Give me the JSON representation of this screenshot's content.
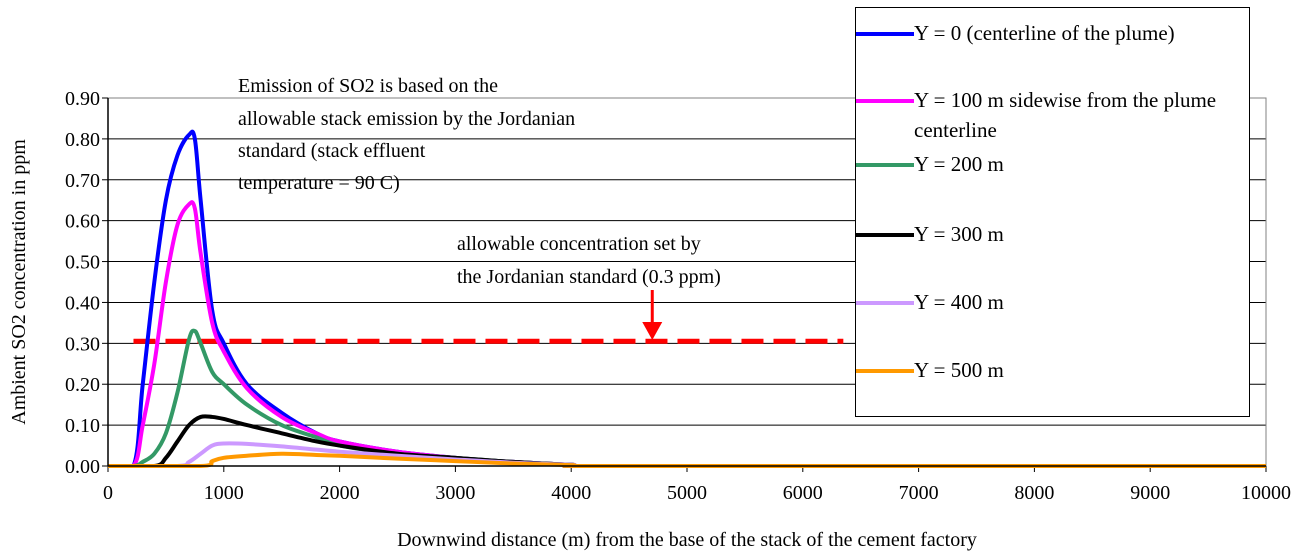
{
  "chart_data": {
    "type": "line",
    "title": "",
    "xlabel": "Downwind distance (m) from the base of the stack of the cement factory",
    "ylabel": "Ambient  SO2 concentration in ppm",
    "xlim": [
      0,
      10000
    ],
    "ylim": [
      0,
      0.9
    ],
    "x_ticks": [
      "0",
      "1000",
      "2000",
      "3000",
      "4000",
      "5000",
      "6000",
      "7000",
      "8000",
      "9000",
      "10000"
    ],
    "y_ticks": [
      "0.00",
      "0.10",
      "0.20",
      "0.30",
      "0.40",
      "0.50",
      "0.60",
      "0.70",
      "0.80",
      "0.90"
    ],
    "grid": "horizontal",
    "legend_position": "right",
    "series": [
      {
        "name": "Y = 0 (centerline of the plume)",
        "color": "#0000ff",
        "points": [
          [
            0,
            0
          ],
          [
            220,
            0
          ],
          [
            300,
            0.2
          ],
          [
            400,
            0.45
          ],
          [
            500,
            0.65
          ],
          [
            600,
            0.76
          ],
          [
            700,
            0.81
          ],
          [
            750,
            0.8
          ],
          [
            800,
            0.65
          ],
          [
            900,
            0.38
          ],
          [
            1000,
            0.3
          ],
          [
            1200,
            0.2
          ],
          [
            1500,
            0.13
          ],
          [
            1800,
            0.08
          ],
          [
            2000,
            0.06
          ],
          [
            2500,
            0.035
          ],
          [
            3000,
            0.02
          ],
          [
            3500,
            0.01
          ],
          [
            4000,
            0.003
          ],
          [
            4500,
            0
          ],
          [
            10000,
            0
          ]
        ]
      },
      {
        "name": "Y = 100 m sidewise from the plume centerline",
        "color": "#ff00ff",
        "points": [
          [
            0,
            0
          ],
          [
            220,
            0
          ],
          [
            300,
            0.1
          ],
          [
            400,
            0.25
          ],
          [
            500,
            0.45
          ],
          [
            600,
            0.59
          ],
          [
            700,
            0.64
          ],
          [
            750,
            0.63
          ],
          [
            800,
            0.52
          ],
          [
            900,
            0.35
          ],
          [
            1000,
            0.28
          ],
          [
            1200,
            0.19
          ],
          [
            1500,
            0.12
          ],
          [
            1800,
            0.08
          ],
          [
            2000,
            0.06
          ],
          [
            2500,
            0.035
          ],
          [
            3000,
            0.02
          ],
          [
            3500,
            0.01
          ],
          [
            4000,
            0.003
          ],
          [
            4500,
            0
          ],
          [
            10000,
            0
          ]
        ]
      },
      {
        "name": "Y = 200 m",
        "color": "#339966",
        "points": [
          [
            0,
            0
          ],
          [
            220,
            0
          ],
          [
            300,
            0.01
          ],
          [
            400,
            0.03
          ],
          [
            500,
            0.08
          ],
          [
            600,
            0.18
          ],
          [
            700,
            0.31
          ],
          [
            750,
            0.33
          ],
          [
            800,
            0.3
          ],
          [
            900,
            0.23
          ],
          [
            1000,
            0.2
          ],
          [
            1200,
            0.15
          ],
          [
            1500,
            0.1
          ],
          [
            1800,
            0.07
          ],
          [
            2000,
            0.05
          ],
          [
            2500,
            0.03
          ],
          [
            3000,
            0.02
          ],
          [
            3500,
            0.01
          ],
          [
            4000,
            0.003
          ],
          [
            4500,
            0
          ],
          [
            10000,
            0
          ]
        ]
      },
      {
        "name": "Y = 300 m",
        "color": "#000000",
        "points": [
          [
            0,
            0
          ],
          [
            400,
            0
          ],
          [
            500,
            0.02
          ],
          [
            600,
            0.06
          ],
          [
            700,
            0.1
          ],
          [
            800,
            0.12
          ],
          [
            900,
            0.12
          ],
          [
            1000,
            0.115
          ],
          [
            1200,
            0.1
          ],
          [
            1500,
            0.08
          ],
          [
            1800,
            0.06
          ],
          [
            2000,
            0.05
          ],
          [
            2500,
            0.03
          ],
          [
            3000,
            0.02
          ],
          [
            3500,
            0.01
          ],
          [
            4000,
            0.003
          ],
          [
            4500,
            0
          ],
          [
            10000,
            0
          ]
        ]
      },
      {
        "name": "Y = 400 m",
        "color": "#cc99ff",
        "points": [
          [
            0,
            0
          ],
          [
            600,
            0
          ],
          [
            700,
            0.01
          ],
          [
            800,
            0.03
          ],
          [
            900,
            0.05
          ],
          [
            1000,
            0.055
          ],
          [
            1200,
            0.054
          ],
          [
            1500,
            0.048
          ],
          [
            1800,
            0.04
          ],
          [
            2000,
            0.035
          ],
          [
            2500,
            0.025
          ],
          [
            3000,
            0.016
          ],
          [
            3500,
            0.008
          ],
          [
            4000,
            0.003
          ],
          [
            4500,
            0
          ],
          [
            10000,
            0
          ]
        ]
      },
      {
        "name": "Y = 500 m",
        "color": "#ff9900",
        "points": [
          [
            0,
            0
          ],
          [
            800,
            0
          ],
          [
            900,
            0.012
          ],
          [
            1000,
            0.02
          ],
          [
            1200,
            0.025
          ],
          [
            1500,
            0.03
          ],
          [
            1800,
            0.027
          ],
          [
            2000,
            0.025
          ],
          [
            2500,
            0.018
          ],
          [
            3000,
            0.012
          ],
          [
            3500,
            0.006
          ],
          [
            4000,
            0.002
          ],
          [
            4500,
            0
          ],
          [
            10000,
            0
          ]
        ]
      }
    ],
    "reference_line": {
      "y": 0.305,
      "color": "#ff0000",
      "x_range": [
        220,
        6350
      ],
      "style": "dashed"
    },
    "annotations": [
      {
        "lines": [
          "Emission of SO2 is based on the",
          "allowable stack emission by the Jordanian",
          "standard (stack effluent",
          "temperature = 90 C)"
        ]
      },
      {
        "lines": [
          "allowable concentration set by",
          "the Jordanian standard (0.3 ppm)"
        ],
        "arrow_color": "#ff0000",
        "arrow_x": 4700
      }
    ]
  }
}
